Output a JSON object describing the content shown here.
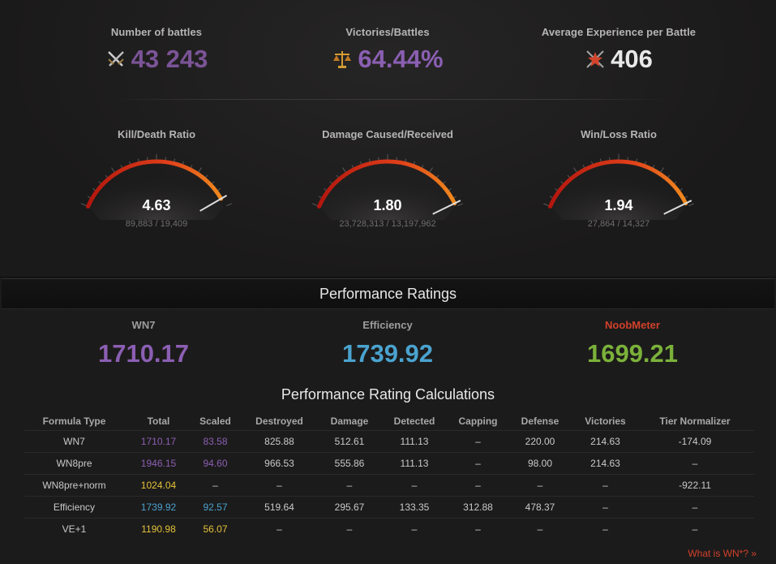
{
  "colors": {
    "purple": "#8b5fb3",
    "blue": "#4aa3cf",
    "green": "#7bb13a",
    "red": "#d0412b",
    "yellow": "#e3c23a",
    "white": "#ffffff"
  },
  "stats": [
    {
      "label": "Number of battles",
      "value": "43 243",
      "icon": "crossed-swords-icon",
      "color": "#7b5497"
    },
    {
      "label": "Victories/Battles",
      "value": "64.44%",
      "icon": "scales-icon",
      "color": "#8a5fb2"
    },
    {
      "label": "Average Experience per Battle",
      "value": "406",
      "icon": "star-burst-icon",
      "color": "#e8e8e8"
    }
  ],
  "gauges": [
    {
      "label": "Kill/Death Ratio",
      "value": "4.63",
      "detail": "89,883 / 19,409",
      "level": 0.95
    },
    {
      "label": "Damage Caused/Received",
      "value": "1.80",
      "detail": "23,728,313 / 13,197,962",
      "level": 0.98
    },
    {
      "label": "Win/Loss Ratio",
      "value": "1.94",
      "detail": "27,864 / 14,327",
      "level": 0.98
    }
  ],
  "performance": {
    "title": "Performance Ratings",
    "ratings": [
      {
        "label": "WN7",
        "value": "1710.17",
        "label_color": "#9d9d9d",
        "value_color": "#8b5fb3"
      },
      {
        "label": "Efficiency",
        "value": "1739.92",
        "label_color": "#9d9d9d",
        "value_color": "#4aa3cf"
      },
      {
        "label": "NoobMeter",
        "value": "1699.21",
        "label_color": "#d0412b",
        "value_color": "#7bb13a"
      }
    ]
  },
  "calculations": {
    "title": "Performance Rating Calculations",
    "headers": [
      "Formula Type",
      "Total",
      "Scaled",
      "Destroyed",
      "Damage",
      "Detected",
      "Capping",
      "Defense",
      "Victories",
      "Tier Normalizer"
    ],
    "rows": [
      {
        "cells": [
          "WN7",
          "1710.17",
          "83.58",
          "825.88",
          "512.61",
          "111.13",
          "–",
          "220.00",
          "214.63",
          "-174.09"
        ],
        "total_color": "#8b5fb3",
        "scaled_color": "#8b5fb3"
      },
      {
        "cells": [
          "WN8pre",
          "1946.15",
          "94.60",
          "966.53",
          "555.86",
          "111.13",
          "–",
          "98.00",
          "214.63",
          "–"
        ],
        "total_color": "#8b5fb3",
        "scaled_color": "#8b5fb3"
      },
      {
        "cells": [
          "WN8pre+norm",
          "1024.04",
          "–",
          "–",
          "–",
          "–",
          "–",
          "–",
          "–",
          "-922.11"
        ],
        "total_color": "#e3c23a",
        "scaled_color": "#c9c9c9"
      },
      {
        "cells": [
          "Efficiency",
          "1739.92",
          "92.57",
          "519.64",
          "295.67",
          "133.35",
          "312.88",
          "478.37",
          "–",
          "–"
        ],
        "total_color": "#4aa3cf",
        "scaled_color": "#4aa3cf"
      },
      {
        "cells": [
          "VE+1",
          "1190.98",
          "56.07",
          "–",
          "–",
          "–",
          "–",
          "–",
          "–",
          "–"
        ],
        "total_color": "#e3c23a",
        "scaled_color": "#e3c23a"
      }
    ]
  },
  "footer": {
    "whatis_label": "What is WN*? »"
  }
}
